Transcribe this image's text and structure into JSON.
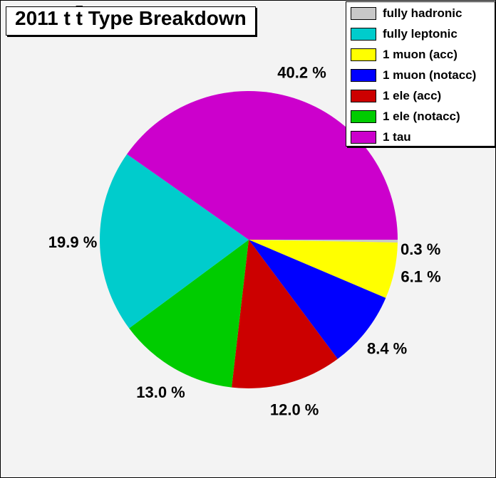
{
  "title": {
    "prefix": "2011 t ",
    "tbar": "t",
    "suffix": " Type Breakdown"
  },
  "chart_data": {
    "type": "pie",
    "title": "2011 t t̄ Type Breakdown",
    "slices": [
      {
        "label": "fully hadronic",
        "percent": 0.3,
        "percent_label": "0.3 %",
        "color": "#c8c8c8"
      },
      {
        "label": "fully leptonic",
        "percent": 19.9,
        "percent_label": "19.9 %",
        "color": "#00cccc"
      },
      {
        "label": "1 muon (acc)",
        "percent": 6.1,
        "percent_label": "6.1 %",
        "color": "#ffff00"
      },
      {
        "label": "1 muon (notacc)",
        "percent": 8.4,
        "percent_label": "8.4 %",
        "color": "#0000ff"
      },
      {
        "label": "1 ele (acc)",
        "percent": 12.0,
        "percent_label": "12.0 %",
        "color": "#cc0000"
      },
      {
        "label": "1 ele (notacc)",
        "percent": 13.0,
        "percent_label": "13.0 %",
        "color": "#00cc00"
      },
      {
        "label": "1 tau",
        "percent": 40.2,
        "percent_label": "40.2 %",
        "color": "#cc00cc"
      }
    ],
    "draw_order": [
      "fully hadronic",
      "1 muon (acc)",
      "1 muon (notacc)",
      "1 ele (acc)",
      "1 ele (notacc)",
      "fully leptonic",
      "1 tau"
    ],
    "start_direction": "3 o'clock, clockwise",
    "legend_position": "top-right"
  }
}
